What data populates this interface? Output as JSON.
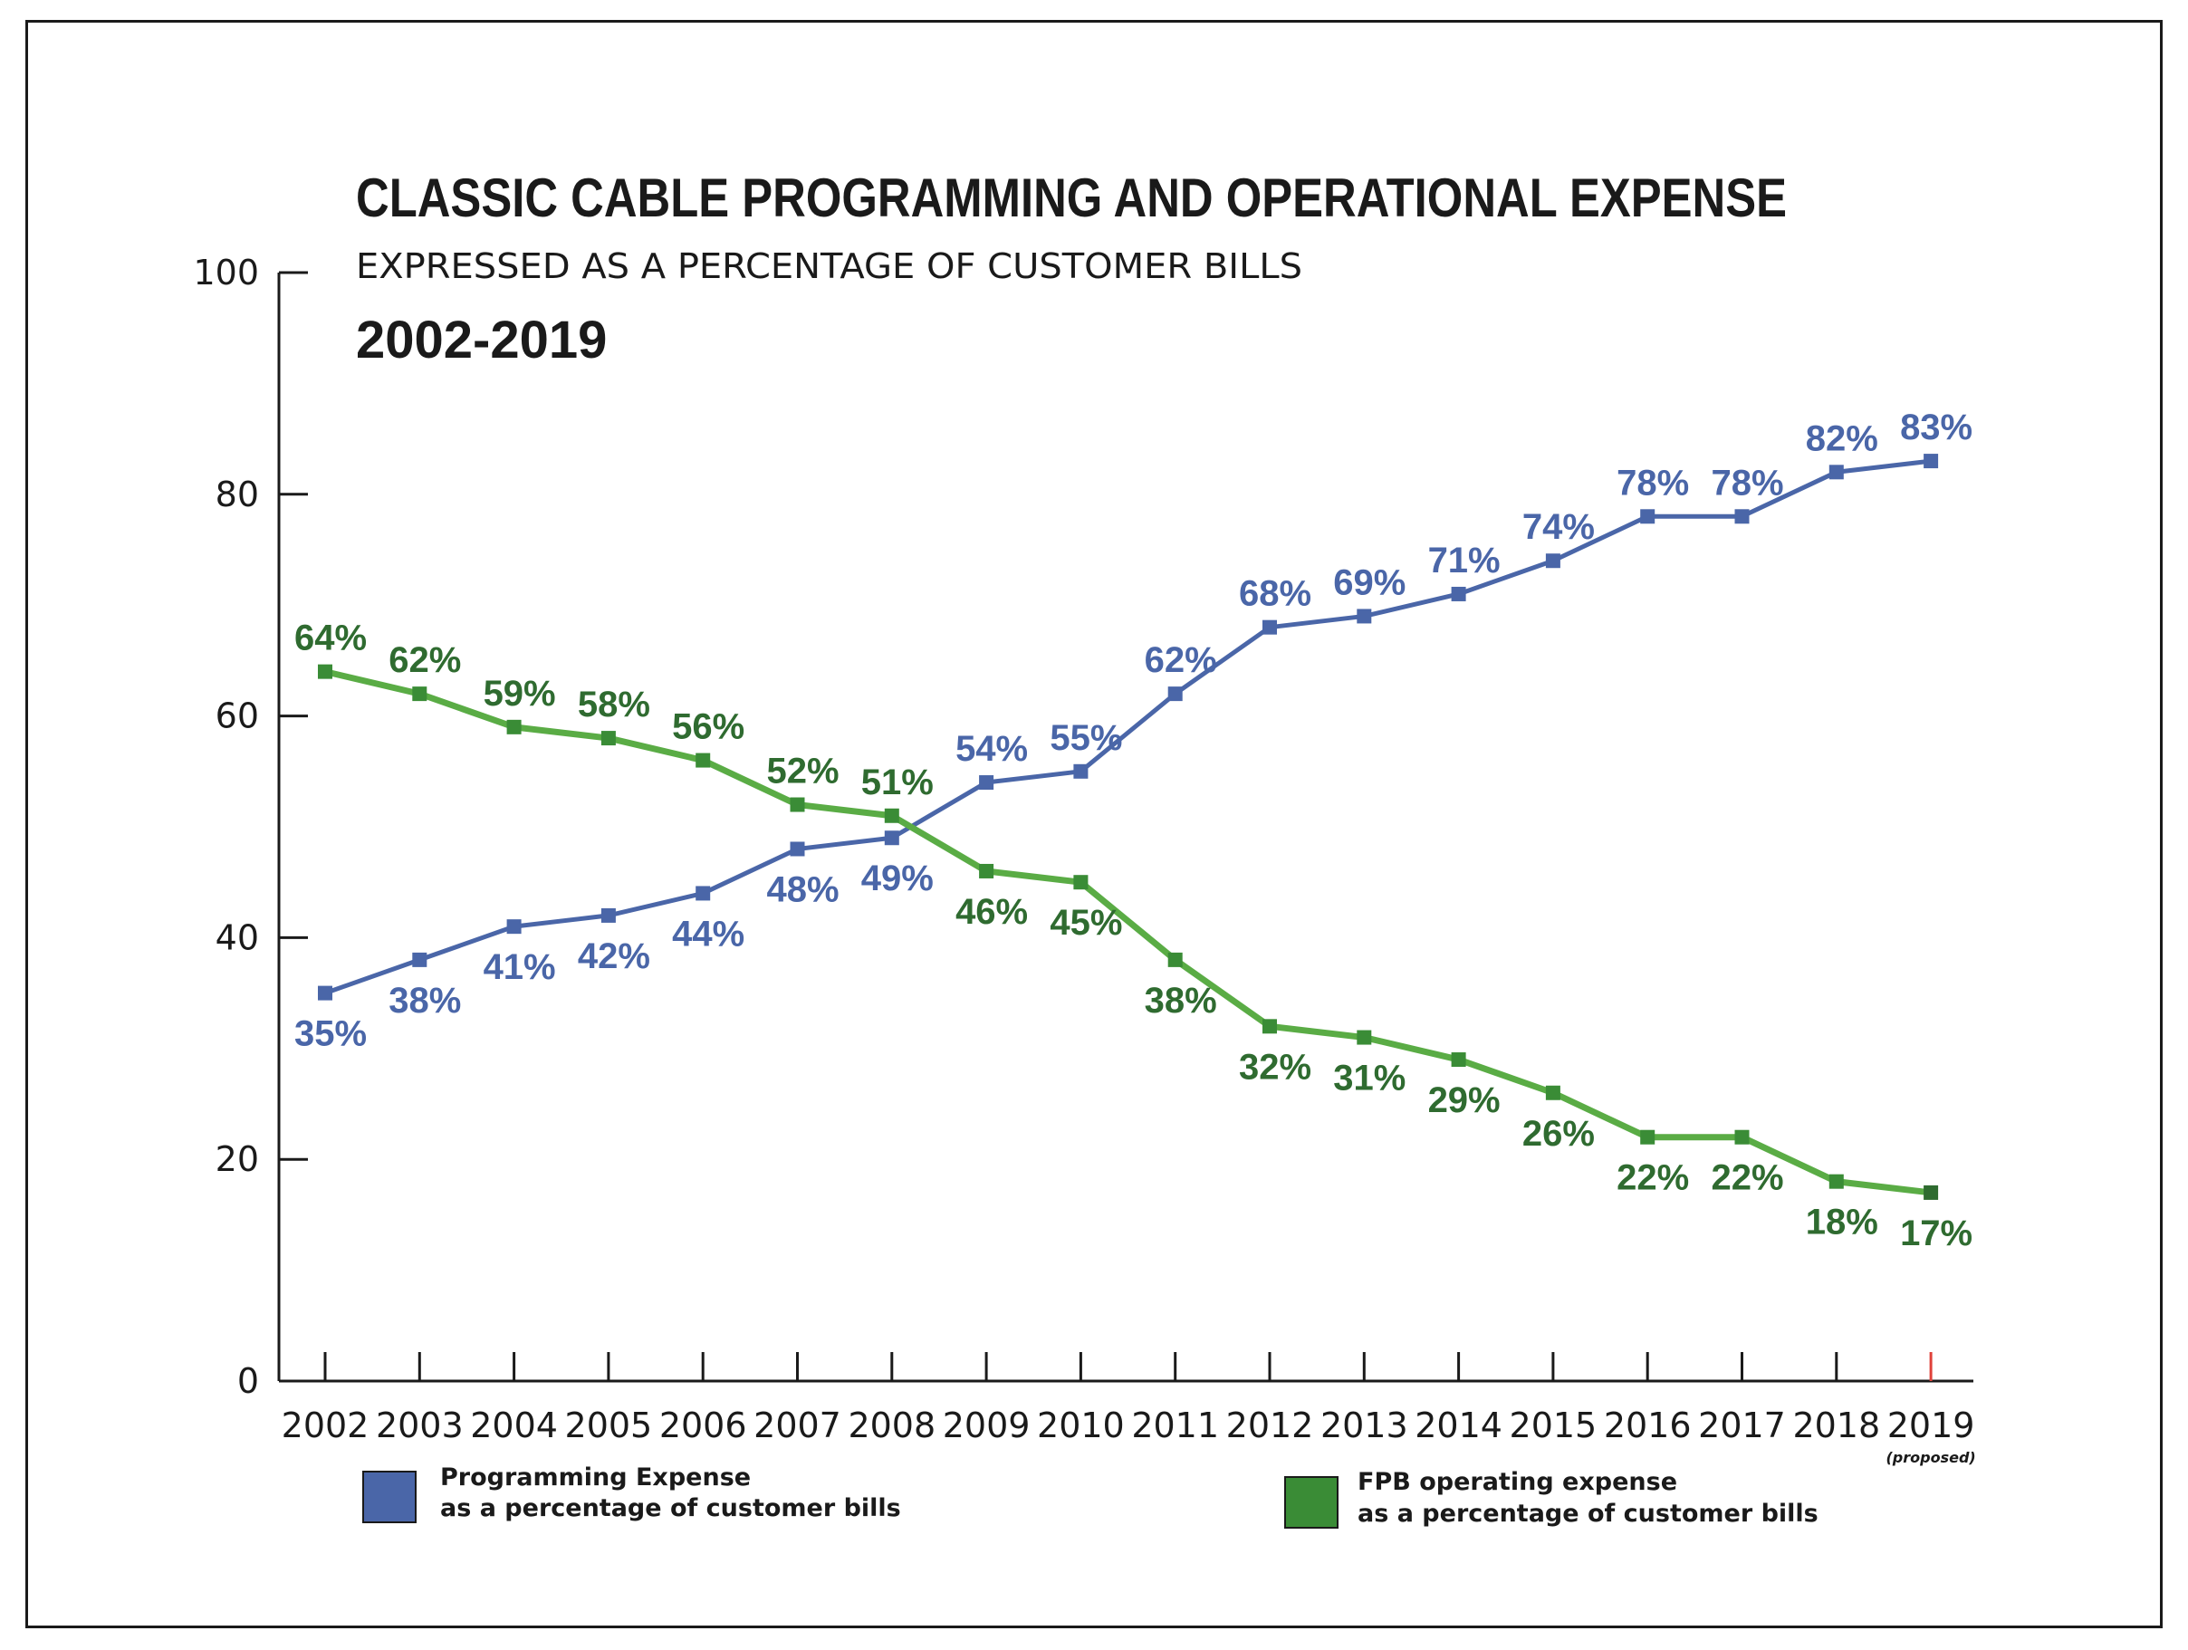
{
  "chart_data": {
    "type": "line",
    "title": "CLASSIC CABLE PROGRAMMING AND OPERATIONAL EXPENSE",
    "subtitle": "EXPRESSED AS A PERCENTAGE OF CUSTOMER BILLS",
    "years_label": "2002-2019",
    "x": [
      "2002",
      "2003",
      "2004",
      "2005",
      "2006",
      "2007",
      "2008",
      "2009",
      "2010",
      "2011",
      "2012",
      "2013",
      "2014",
      "2015",
      "2016",
      "2017",
      "2018",
      "2019"
    ],
    "x_note": "(proposed)",
    "ylim": [
      0,
      100
    ],
    "yticks": [
      "0",
      "20",
      "40",
      "60",
      "80",
      "100"
    ],
    "ytick_values": [
      0,
      20,
      40,
      60,
      80,
      100
    ],
    "grid": false,
    "legend_position": "bottom",
    "series": [
      {
        "name": "Programming Expense",
        "name_line2": "as a percentage of customer bills",
        "color": "#4a66a8",
        "label_color": "#4a66a8",
        "values": [
          35,
          38,
          41,
          42,
          44,
          48,
          49,
          54,
          55,
          62,
          68,
          69,
          71,
          74,
          78,
          78,
          82,
          83
        ],
        "labels": [
          "35%",
          "38%",
          "41%",
          "42%",
          "44%",
          "48%",
          "49%",
          "54%",
          "55%",
          "62%",
          "68%",
          "69%",
          "71%",
          "74%",
          "78%",
          "78%",
          "82%",
          "83%"
        ]
      },
      {
        "name": "FPB operating expense",
        "name_line2": "as a percentage of customer bills",
        "color": "#5aac45",
        "marker_color": "#3a8c36",
        "label_color": "#2f6b30",
        "values": [
          64,
          62,
          59,
          58,
          56,
          52,
          51,
          46,
          45,
          38,
          32,
          31,
          29,
          26,
          22,
          22,
          18,
          17
        ],
        "labels": [
          "64%",
          "62%",
          "59%",
          "58%",
          "56%",
          "52%",
          "51%",
          "46%",
          "45%",
          "38%",
          "32%",
          "31%",
          "29%",
          "26%",
          "22%",
          "22%",
          "18%",
          "17%"
        ]
      }
    ]
  }
}
